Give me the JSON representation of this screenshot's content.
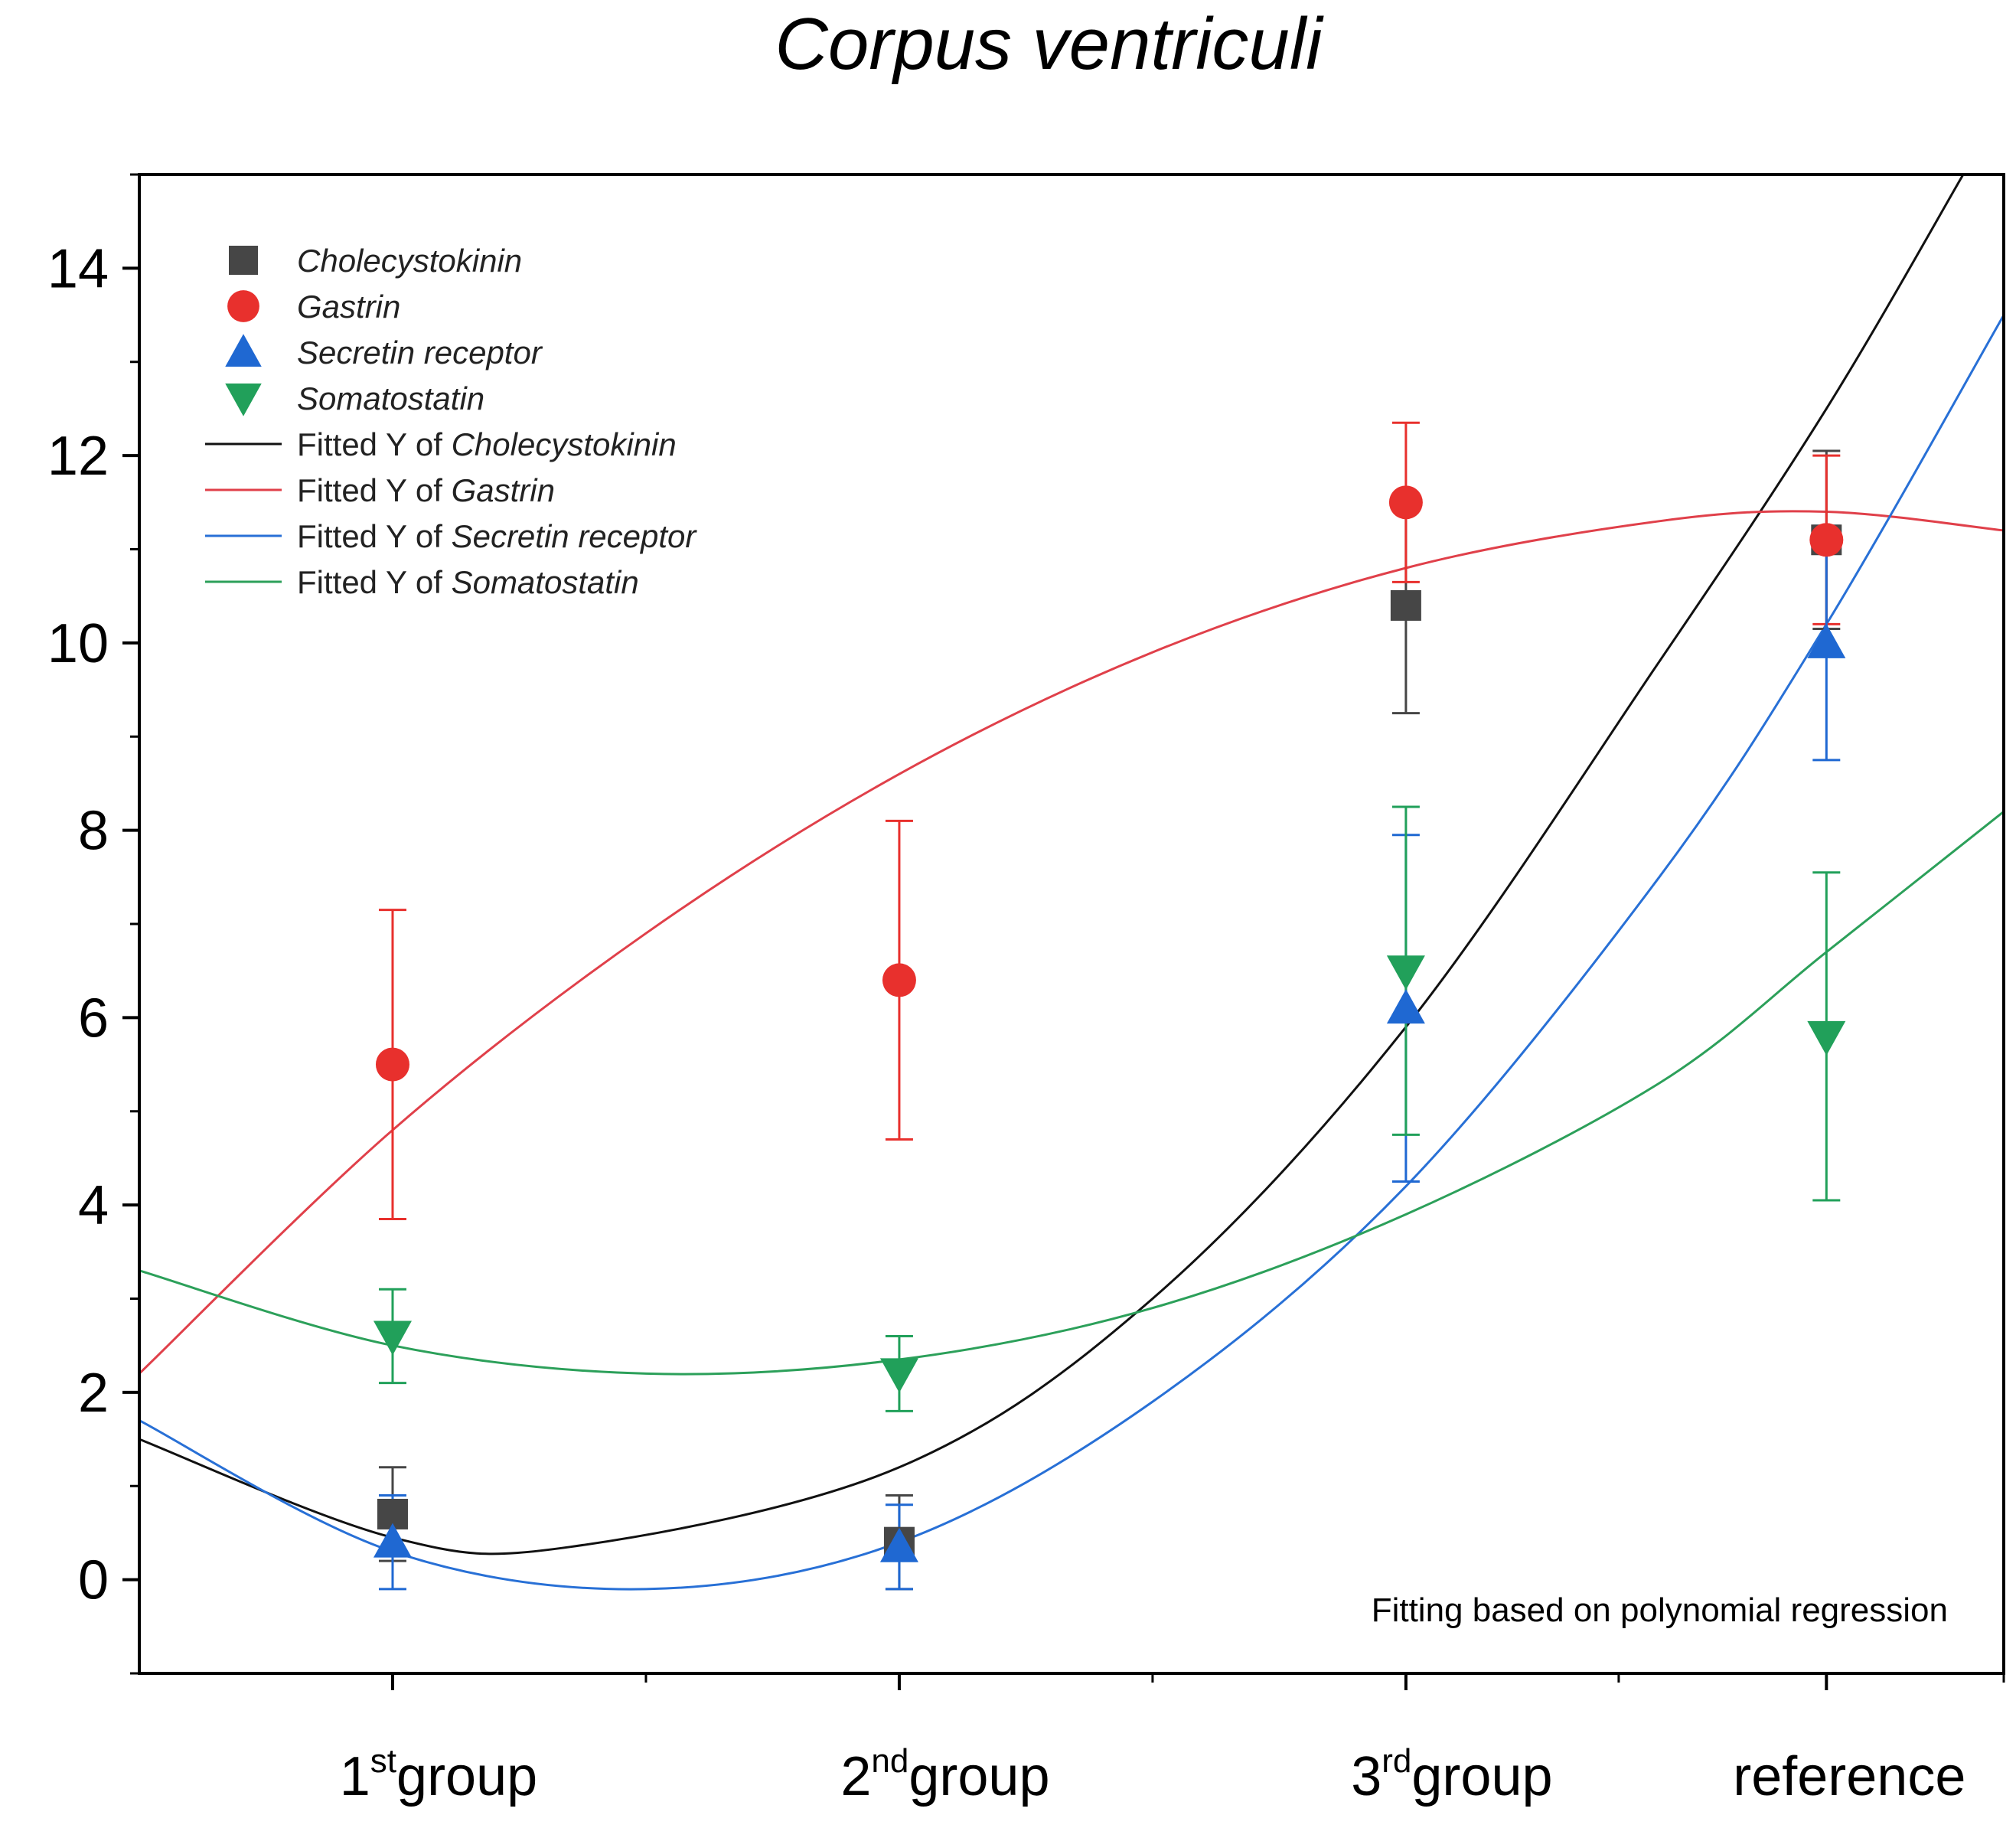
{
  "chart_data": {
    "type": "scatter",
    "title": "Corpus ventriculi",
    "xlabel": "",
    "ylabel": "",
    "categories": [
      {
        "label": "1",
        "sup": "st",
        "suffix": "group"
      },
      {
        "label": "2",
        "sup": "nd",
        "suffix": "group"
      },
      {
        "label": "3",
        "sup": "rd",
        "suffix": "group"
      },
      {
        "label": "reference",
        "sup": "",
        "suffix": ""
      }
    ],
    "category_x": [
      1,
      2,
      3,
      3.83
    ],
    "xlim": [
      0.5,
      4.18
    ],
    "ylim": [
      -1,
      15
    ],
    "yticks": [
      0,
      2,
      4,
      6,
      8,
      10,
      12,
      14
    ],
    "xminor_ticks": [
      1.5,
      2.5,
      3.42,
      4.18
    ],
    "legend_position": "top-left",
    "series": [
      {
        "name": "Cholecystokinin",
        "marker": "square",
        "color": "#464646",
        "values": [
          0.7,
          0.4,
          10.4,
          11.1
        ],
        "errors": [
          0.5,
          0.5,
          1.15,
          0.95
        ]
      },
      {
        "name": "Gastrin",
        "marker": "circle",
        "color": "#e8302d",
        "values": [
          5.5,
          6.4,
          11.5,
          11.1
        ],
        "errors": [
          1.65,
          1.7,
          0.85,
          0.9
        ]
      },
      {
        "name": "Secretin receptor",
        "marker": "triangle-up",
        "color": "#1f68d2",
        "values": [
          0.4,
          0.35,
          6.1,
          10.0
        ],
        "errors": [
          0.5,
          0.45,
          1.85,
          1.25
        ]
      },
      {
        "name": "Somatostatin",
        "marker": "triangle-down",
        "color": "#21a05a",
        "values": [
          2.6,
          2.2,
          6.5,
          5.8
        ],
        "errors": [
          0.5,
          0.4,
          1.75,
          1.75
        ]
      }
    ],
    "fits": [
      {
        "name": "Fitted Y of Cholecystokinin",
        "series": "Cholecystokinin",
        "color": "#111111",
        "x": [
          0.5,
          1,
          1.35,
          2,
          2.5,
          3,
          3.5,
          3.83,
          4.1
        ],
        "y": [
          1.5,
          0.45,
          0.35,
          1.2,
          3.0,
          5.9,
          9.8,
          12.5,
          15.0
        ]
      },
      {
        "name": "Fitted Y of Gastrin",
        "series": "Gastrin",
        "color": "#e0404a",
        "x": [
          0.5,
          1,
          1.5,
          2,
          2.5,
          3,
          3.5,
          3.83,
          4.18
        ],
        "y": [
          2.2,
          4.8,
          6.9,
          8.6,
          9.9,
          10.8,
          11.3,
          11.4,
          11.2
        ]
      },
      {
        "name": "Fitted Y of Secretin receptor",
        "series": "Secretin receptor",
        "color": "#2870d6",
        "x": [
          0.5,
          1,
          1.5,
          2,
          2.5,
          3,
          3.5,
          3.83,
          4.18
        ],
        "y": [
          1.7,
          0.3,
          -0.1,
          0.4,
          1.9,
          4.2,
          7.5,
          10.2,
          13.5
        ]
      },
      {
        "name": "Fitted Y of Somatostatin",
        "series": "Somatostatin",
        "color": "#2ca05a",
        "x": [
          0.5,
          1,
          1.5,
          2,
          2.5,
          3,
          3.5,
          3.83,
          4.18
        ],
        "y": [
          3.3,
          2.5,
          2.2,
          2.35,
          2.9,
          3.9,
          5.3,
          6.7,
          8.2
        ]
      }
    ],
    "legend": [
      {
        "kind": "marker",
        "text": "Cholecystokinin"
      },
      {
        "kind": "marker",
        "text": "Gastrin"
      },
      {
        "kind": "marker",
        "text": "Secretin receptor"
      },
      {
        "kind": "marker",
        "text": "Somatostatin"
      },
      {
        "kind": "line",
        "prefix": "Fitted Y of",
        "text": "Cholecystokinin"
      },
      {
        "kind": "line",
        "prefix": "Fitted Y of",
        "text": "Gastrin"
      },
      {
        "kind": "line",
        "prefix": "Fitted Y of",
        "text": "Secretin receptor"
      },
      {
        "kind": "line",
        "prefix": "Fitted Y of",
        "text": "Somatostatin"
      }
    ],
    "annotation": "Fitting based on polynomial regression"
  }
}
